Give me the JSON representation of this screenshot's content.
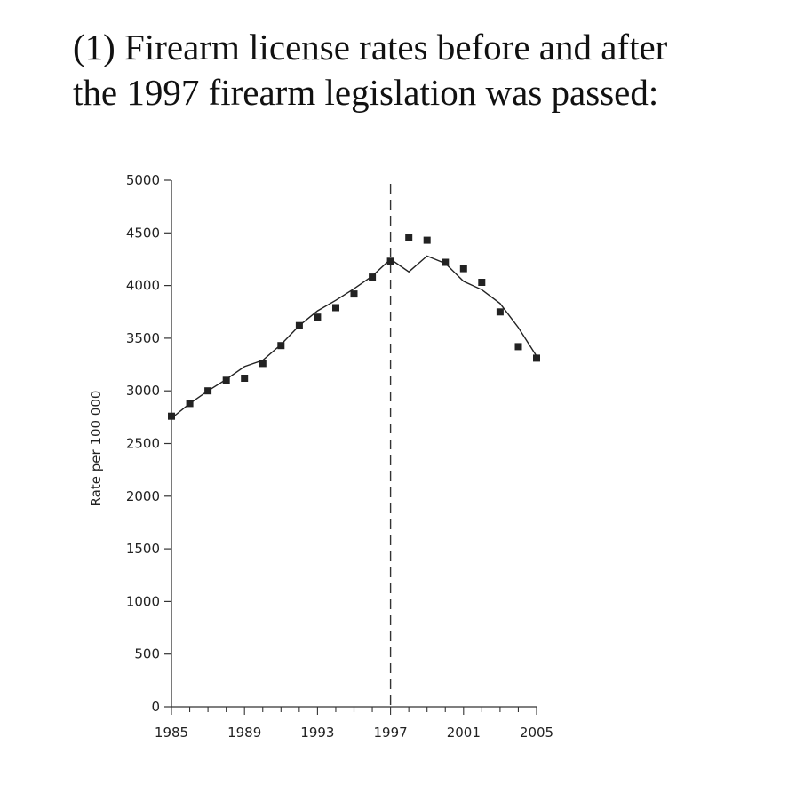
{
  "title_line1": "(1) Firearm license rates before and after",
  "title_line2": "the 1997 firearm legislation was passed:",
  "chart_data": {
    "type": "scatter",
    "ylabel": "Rate per 100 000",
    "xlabel": "",
    "xlim": [
      1985,
      2005
    ],
    "ylim": [
      0,
      5000
    ],
    "x_ticks": [
      1985,
      1989,
      1993,
      1997,
      2001,
      2005
    ],
    "y_ticks": [
      0,
      500,
      1000,
      1500,
      2000,
      2500,
      3000,
      3500,
      4000,
      4500,
      5000
    ],
    "legislation_year": 1997,
    "series": [
      {
        "kind": "points",
        "x": [
          1985,
          1986,
          1987,
          1988,
          1989,
          1990,
          1991,
          1992,
          1993,
          1994,
          1995,
          1996,
          1997,
          1998,
          1999,
          2000,
          2001,
          2002,
          2003,
          2004,
          2005
        ],
        "values": [
          2760,
          2880,
          3000,
          3100,
          3120,
          3260,
          3430,
          3620,
          3700,
          3790,
          3920,
          4080,
          4230,
          4460,
          4430,
          4220,
          4160,
          4030,
          3750,
          3420,
          3310
        ]
      },
      {
        "kind": "trend-line",
        "x": [
          1985,
          1986,
          1987,
          1988,
          1989,
          1990,
          1991,
          1992,
          1993,
          1994,
          1995,
          1996,
          1997,
          1998,
          1999,
          2000,
          2001,
          2002,
          2003,
          2004,
          2005
        ],
        "values": [
          2740,
          2880,
          3000,
          3110,
          3230,
          3290,
          3440,
          3620,
          3760,
          3860,
          3970,
          4090,
          4250,
          4130,
          4280,
          4210,
          4040,
          3960,
          3830,
          3600,
          3330
        ]
      }
    ]
  }
}
